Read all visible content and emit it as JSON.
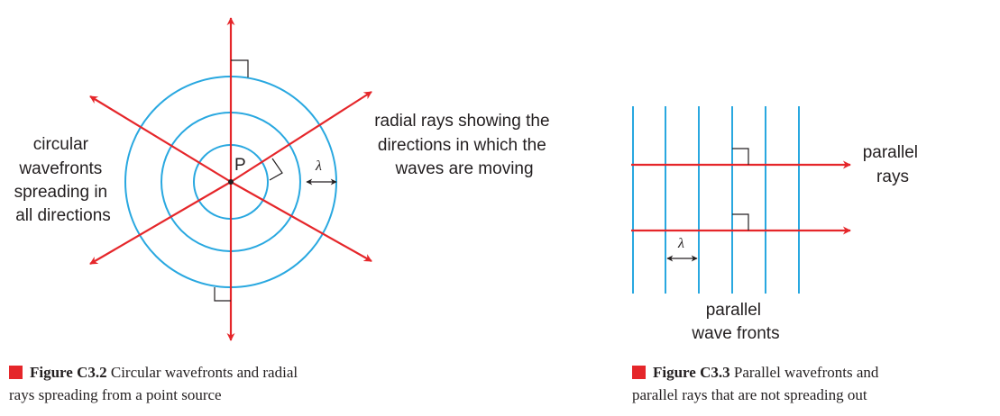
{
  "figure_left": {
    "point_label": "P",
    "lambda": "λ",
    "label_circular": [
      "circular",
      "wavefronts",
      "spreading in",
      "all directions"
    ],
    "label_radial": [
      "radial rays showing the",
      "directions in which the",
      "waves are moving"
    ],
    "caption_bold": "Figure C3.2",
    "caption_line1": "Circular wavefronts and radial",
    "caption_line2": "rays spreading from a point source"
  },
  "figure_right": {
    "lambda": "λ",
    "label_rays": [
      "parallel",
      "rays"
    ],
    "label_fronts": [
      "parallel",
      "wave fronts"
    ],
    "caption_bold": "Figure C3.3",
    "caption_line1": "Parallel wavefronts and",
    "caption_line2": "parallel rays that are not spreading out"
  },
  "colors": {
    "wave": "#29a8e0",
    "ray": "#e5262a",
    "text": "#231f20",
    "caption_marker": "#e5262a"
  }
}
